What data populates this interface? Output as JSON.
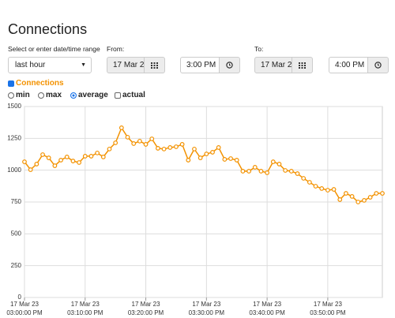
{
  "header": {
    "title": "Connections"
  },
  "form": {
    "range_label": "Select or enter date/time range",
    "range_value": "last hour",
    "from_label": "From:",
    "from_date": "17 Mar 2",
    "from_time": "3:00 PM",
    "to_label": "To:",
    "to_date": "17 Mar 2",
    "to_time": "4:00 PM"
  },
  "options": {
    "series_toggle": "Connections",
    "modes": [
      "min",
      "max",
      "average",
      "actual"
    ]
  },
  "chart_data": {
    "type": "line",
    "x": [
      "17 Mar 23 03:00:00 PM",
      "17 Mar 23 03:01:00 PM",
      "17 Mar 23 03:02:00 PM",
      "17 Mar 23 03:03:00 PM",
      "17 Mar 23 03:04:00 PM",
      "17 Mar 23 03:05:00 PM",
      "17 Mar 23 03:06:00 PM",
      "17 Mar 23 03:07:00 PM",
      "17 Mar 23 03:08:00 PM",
      "17 Mar 23 03:09:00 PM",
      "17 Mar 23 03:10:00 PM",
      "17 Mar 23 03:11:00 PM",
      "17 Mar 23 03:12:00 PM",
      "17 Mar 23 03:13:00 PM",
      "17 Mar 23 03:14:00 PM",
      "17 Mar 23 03:15:00 PM",
      "17 Mar 23 03:16:00 PM",
      "17 Mar 23 03:17:00 PM",
      "17 Mar 23 03:18:00 PM",
      "17 Mar 23 03:19:00 PM",
      "17 Mar 23 03:20:00 PM",
      "17 Mar 23 03:21:00 PM",
      "17 Mar 23 03:22:00 PM",
      "17 Mar 23 03:23:00 PM",
      "17 Mar 23 03:24:00 PM",
      "17 Mar 23 03:25:00 PM",
      "17 Mar 23 03:26:00 PM",
      "17 Mar 23 03:27:00 PM",
      "17 Mar 23 03:28:00 PM",
      "17 Mar 23 03:29:00 PM",
      "17 Mar 23 03:30:00 PM",
      "17 Mar 23 03:31:00 PM",
      "17 Mar 23 03:32:00 PM",
      "17 Mar 23 03:33:00 PM",
      "17 Mar 23 03:34:00 PM",
      "17 Mar 23 03:35:00 PM",
      "17 Mar 23 03:36:00 PM",
      "17 Mar 23 03:37:00 PM",
      "17 Mar 23 03:38:00 PM",
      "17 Mar 23 03:39:00 PM",
      "17 Mar 23 03:40:00 PM",
      "17 Mar 23 03:41:00 PM",
      "17 Mar 23 03:42:00 PM",
      "17 Mar 23 03:43:00 PM",
      "17 Mar 23 03:44:00 PM",
      "17 Mar 23 03:45:00 PM",
      "17 Mar 23 03:46:00 PM",
      "17 Mar 23 03:47:00 PM",
      "17 Mar 23 03:48:00 PM",
      "17 Mar 23 03:49:00 PM",
      "17 Mar 23 03:50:00 PM",
      "17 Mar 23 03:51:00 PM",
      "17 Mar 23 03:52:00 PM",
      "17 Mar 23 03:53:00 PM",
      "17 Mar 23 03:54:00 PM",
      "17 Mar 23 03:55:00 PM",
      "17 Mar 23 03:56:00 PM",
      "17 Mar 23 03:57:00 PM",
      "17 Mar 23 03:58:00 PM",
      "17 Mar 23 03:59:00 PM"
    ],
    "series": [
      {
        "name": "Connections",
        "color": "#f39200",
        "values": [
          1066,
          1004,
          1048,
          1122,
          1097,
          1035,
          1079,
          1104,
          1072,
          1060,
          1110,
          1110,
          1135,
          1104,
          1166,
          1215,
          1333,
          1259,
          1209,
          1228,
          1203,
          1246,
          1172,
          1166,
          1178,
          1184,
          1203,
          1079,
          1166,
          1097,
          1128,
          1141,
          1178,
          1085,
          1091,
          1079,
          992,
          992,
          1023,
          992,
          980,
          1066,
          1048,
          998,
          992,
          973,
          936,
          905,
          874,
          856,
          843,
          849,
          769,
          818,
          794,
          750,
          763,
          787,
          818,
          818
        ]
      }
    ],
    "xlim": [
      "17 Mar 23 03:00:00 PM",
      "17 Mar 23 03:59:00 PM"
    ],
    "xticks": [
      {
        "value": "17 Mar 23 03:00:00 PM",
        "label": [
          "17 Mar 23",
          "03:00:00 PM"
        ]
      },
      {
        "value": "17 Mar 23 03:10:00 PM",
        "label": [
          "17 Mar 23",
          "03:10:00 PM"
        ]
      },
      {
        "value": "17 Mar 23 03:20:00 PM",
        "label": [
          "17 Mar 23",
          "03:20:00 PM"
        ]
      },
      {
        "value": "17 Mar 23 03:30:00 PM",
        "label": [
          "17 Mar 23",
          "03:30:00 PM"
        ]
      },
      {
        "value": "17 Mar 23 03:40:00 PM",
        "label": [
          "17 Mar 23",
          "03:40:00 PM"
        ]
      },
      {
        "value": "17 Mar 23 03:50:00 PM",
        "label": [
          "17 Mar 23",
          "03:50:00 PM"
        ]
      }
    ],
    "ylim": [
      0,
      1500
    ],
    "yticks": [
      0,
      250,
      500,
      750,
      1000,
      1250,
      1500
    ],
    "grid": true
  }
}
